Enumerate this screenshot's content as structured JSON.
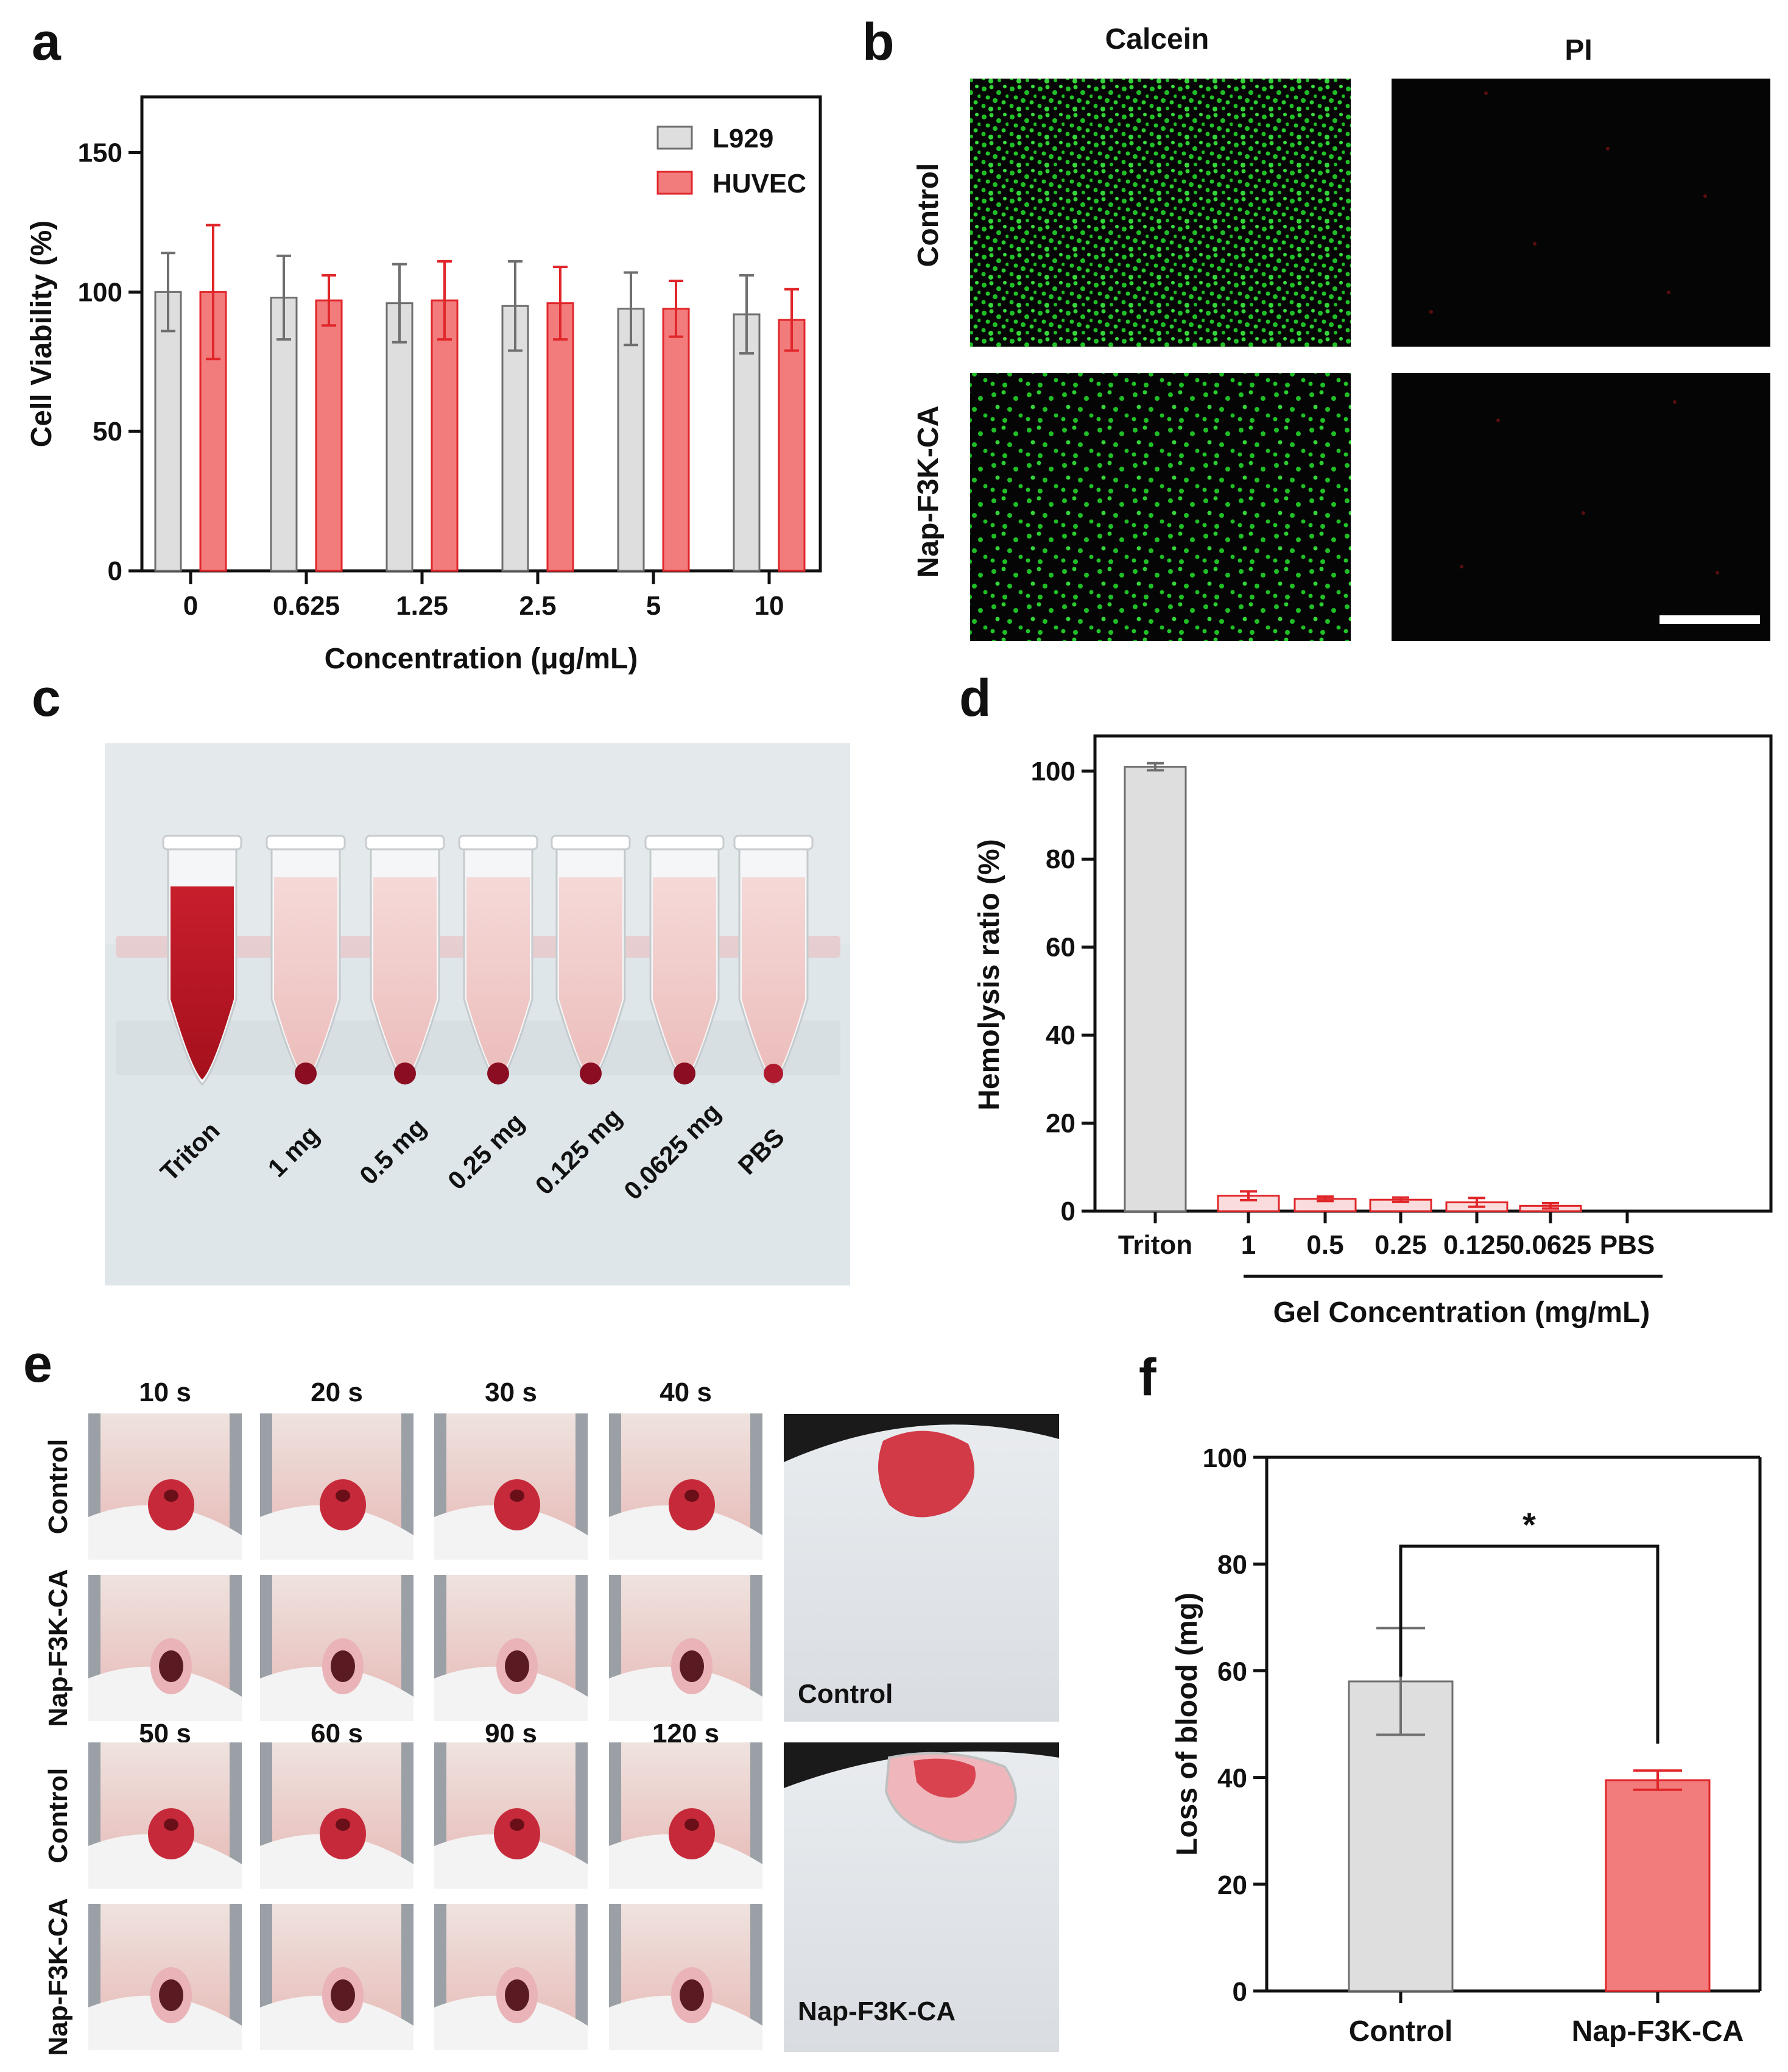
{
  "panel_letters": {
    "a": "a",
    "b": "b",
    "c": "c",
    "d": "d",
    "e": "e",
    "f": "f"
  },
  "colors": {
    "grey_fill": "#dedede",
    "grey_edge": "#6f6f6f",
    "red_fill": "#f27c7c",
    "red_edge": "#e0262a",
    "pale_red_fill": "#fbdcdc",
    "green_cell": "#1fbf25",
    "dark_bg": "#050505"
  },
  "chart_data": [
    {
      "id": "a",
      "type": "bar",
      "xlabel": "Concentration (μg/mL)",
      "ylabel": "Cell Viability (%)",
      "categories": [
        "0",
        "0.625",
        "1.25",
        "2.5",
        "5",
        "10"
      ],
      "ylim": [
        0,
        170
      ],
      "yticks": [
        "0",
        "50",
        "100",
        "150"
      ],
      "legend_position": "top-right",
      "series": [
        {
          "name": "L929",
          "values": [
            100,
            98,
            96,
            95,
            94,
            92
          ],
          "errors": [
            14,
            15,
            14,
            16,
            13,
            14
          ]
        },
        {
          "name": "HUVEC",
          "values": [
            100,
            97,
            97,
            96,
            94,
            90
          ],
          "errors": [
            24,
            9,
            14,
            13,
            10,
            11
          ]
        }
      ]
    },
    {
      "id": "d",
      "type": "bar",
      "xlabel": "Gel Concentration (mg/mL)",
      "ylabel": "Hemolysis ratio (%)",
      "categories": [
        "Triton",
        "1",
        "0.5",
        "0.25",
        "0.125",
        "0.0625",
        "PBS"
      ],
      "values": [
        101,
        3.5,
        2.8,
        2.6,
        2.0,
        1.2,
        0
      ],
      "errors": [
        0.8,
        1.0,
        0.5,
        0.5,
        1.0,
        0.6,
        0
      ],
      "ylim": [
        0,
        108
      ],
      "yticks": [
        "0",
        "20",
        "40",
        "60",
        "80",
        "100"
      ]
    },
    {
      "id": "f",
      "type": "bar",
      "ylabel": "Loss of blood (mg)",
      "categories": [
        "Control",
        "Nap-F3K-CA"
      ],
      "values": [
        58,
        39.5
      ],
      "errors": [
        10,
        1.8
      ],
      "ylim": [
        0,
        100
      ],
      "yticks": [
        "0",
        "20",
        "40",
        "60",
        "80",
        "100"
      ],
      "significance": "*"
    }
  ],
  "panel_b": {
    "col_labels": [
      "Calcein",
      "PI"
    ],
    "row_labels": [
      "Control",
      "Nap-F3K-CA"
    ]
  },
  "panel_c": {
    "tube_labels": [
      "Triton",
      "1 mg",
      "0.5 mg",
      "0.25 mg",
      "0.125 mg",
      "0.0625 mg",
      "PBS"
    ]
  },
  "panel_e": {
    "time_labels_top": [
      "10 s",
      "20 s",
      "30 s",
      "40 s"
    ],
    "time_labels_bottom": [
      "50 s",
      "60 s",
      "90 s",
      "120 s"
    ],
    "row_labels": [
      "Control",
      "Nap-F3K-CA",
      "Control",
      "Nap-F3K-CA"
    ],
    "photo_labels": [
      "Control",
      "Nap-F3K-CA"
    ]
  }
}
